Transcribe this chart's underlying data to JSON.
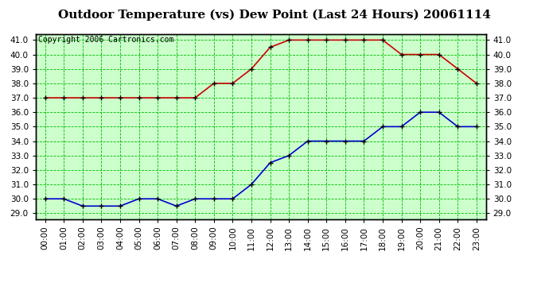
{
  "title": "Outdoor Temperature (vs) Dew Point (Last 24 Hours) 20061114",
  "copyright": "Copyright 2006 Cartronics.com",
  "hours": [
    "00:00",
    "01:00",
    "02:00",
    "03:00",
    "04:00",
    "05:00",
    "06:00",
    "07:00",
    "08:00",
    "09:00",
    "10:00",
    "11:00",
    "12:00",
    "13:00",
    "14:00",
    "15:00",
    "16:00",
    "17:00",
    "18:00",
    "19:00",
    "20:00",
    "21:00",
    "22:00",
    "23:00"
  ],
  "red_temp": [
    37.0,
    37.0,
    37.0,
    37.0,
    37.0,
    37.0,
    37.0,
    37.0,
    37.0,
    38.0,
    38.0,
    39.0,
    40.5,
    41.0,
    41.0,
    41.0,
    41.0,
    41.0,
    41.0,
    40.0,
    40.0,
    40.0,
    39.0,
    38.0
  ],
  "blue_temp": [
    30.0,
    30.0,
    29.5,
    29.5,
    29.5,
    30.0,
    30.0,
    29.5,
    30.0,
    30.0,
    30.0,
    31.0,
    32.5,
    33.0,
    34.0,
    34.0,
    34.0,
    34.0,
    35.0,
    35.0,
    36.0,
    36.0,
    35.0,
    35.0
  ],
  "ylim_min": 29.0,
  "ylim_max": 41.0,
  "ytick_step": 1.0,
  "fig_bg": "#ffffff",
  "plot_bg": "#ccffcc",
  "red_color": "#cc0000",
  "blue_color": "#0000cc",
  "grid_color": "#00bb00",
  "title_fontsize": 11,
  "copyright_fontsize": 7,
  "tick_fontsize": 7.5,
  "marker_size": 5
}
